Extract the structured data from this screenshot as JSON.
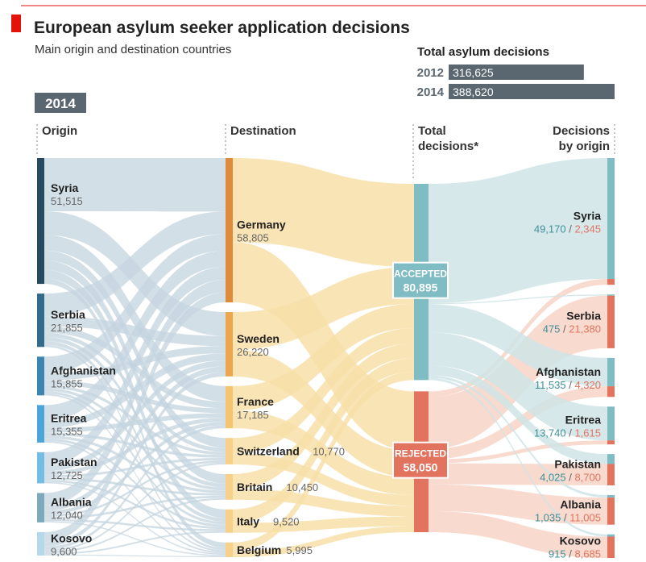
{
  "chart_data": {
    "type": "sankey",
    "title": "European asylum seeker application decisions",
    "subtitle": "Main origin and destination countries",
    "year_label": "2014",
    "totals": {
      "heading": "Total asylum decisions",
      "rows": [
        {
          "year": "2012",
          "value_label": "316,625",
          "value": 316625
        },
        {
          "year": "2014",
          "value_label": "388,620",
          "value": 388620
        }
      ]
    },
    "column_headers": {
      "origin": "Origin",
      "destination": "Destination",
      "total_line1": "Total",
      "total_line2": "decisions*",
      "by_origin_line1": "Decisions",
      "by_origin_line2": "by origin"
    },
    "origins": [
      {
        "name": "Syria",
        "value_label": "51,515",
        "value": 51515,
        "color": "#274a60"
      },
      {
        "name": "Serbia",
        "value_label": "21,855",
        "value": 21855,
        "color": "#336b8a"
      },
      {
        "name": "Afghanistan",
        "value_label": "15,855",
        "value": 15855,
        "color": "#3d84b0"
      },
      {
        "name": "Eritrea",
        "value_label": "15,355",
        "value": 15355,
        "color": "#4aa6d9"
      },
      {
        "name": "Pakistan",
        "value_label": "12,725",
        "value": 12725,
        "color": "#73bce3"
      },
      {
        "name": "Albania",
        "value_label": "12,040",
        "value": 12040,
        "color": "#7da9bd"
      },
      {
        "name": "Kosovo",
        "value_label": "9,600",
        "value": 9600,
        "color": "#b3d9ea"
      }
    ],
    "destinations": [
      {
        "name": "Germany",
        "value_label": "58,805",
        "value": 58805,
        "color": "#e08a3c"
      },
      {
        "name": "Sweden",
        "value_label": "26,220",
        "value": 26220,
        "color": "#eea64e"
      },
      {
        "name": "France",
        "value_label": "17,185",
        "value": 17185,
        "color": "#f4c56e"
      },
      {
        "name": "Switzerland",
        "value_label": "10,770",
        "value": 10770,
        "color": "#f7d18a"
      },
      {
        "name": "Britain",
        "value_label": "10,450",
        "value": 10450,
        "color": "#f7d18a"
      },
      {
        "name": "Italy",
        "value_label": "9,520",
        "value": 9520,
        "color": "#f7d18a"
      },
      {
        "name": "Belgium",
        "value_label": "5,995",
        "value": 5995,
        "color": "#f7d18a"
      }
    ],
    "decisions": [
      {
        "name": "ACCEPTED",
        "value_label": "80,895",
        "value": 80895,
        "color": "#7fbcc3"
      },
      {
        "name": "REJECTED",
        "value_label": "58,050",
        "value": 58050,
        "color": "#e2745f"
      }
    ],
    "by_origin": [
      {
        "name": "Syria",
        "accepted_label": "49,170",
        "rejected_label": "2,345",
        "accepted": 49170,
        "rejected": 2345
      },
      {
        "name": "Serbia",
        "accepted_label": "475",
        "rejected_label": "21,380",
        "accepted": 475,
        "rejected": 21380
      },
      {
        "name": "Afghanistan",
        "accepted_label": "11,535",
        "rejected_label": "4,320",
        "accepted": 11535,
        "rejected": 4320
      },
      {
        "name": "Eritrea",
        "accepted_label": "13,740",
        "rejected_label": "1,615",
        "accepted": 13740,
        "rejected": 1615
      },
      {
        "name": "Pakistan",
        "accepted_label": "4,025",
        "rejected_label": "8,700",
        "accepted": 4025,
        "rejected": 8700
      },
      {
        "name": "Albania",
        "accepted_label": "1,035",
        "rejected_label": "11,005",
        "accepted": 1035,
        "rejected": 11005
      },
      {
        "name": "Kosovo",
        "accepted_label": "915",
        "rejected_label": "8,685",
        "accepted": 915,
        "rejected": 8685
      }
    ],
    "separator": " / ",
    "colors": {
      "accent": "#e3120b",
      "ink": "#222222",
      "muted": "#666666",
      "total_bar": "#5a6670",
      "year_badge": "#5a6670",
      "accepted_text": "#3f8f96",
      "rejected_text": "#e2745f",
      "origin_flow": "#c4d4df",
      "dest_flow": "#f8dfa8",
      "acc_flow": "#cfe4e6",
      "rej_flow": "#f6cdbf"
    }
  }
}
